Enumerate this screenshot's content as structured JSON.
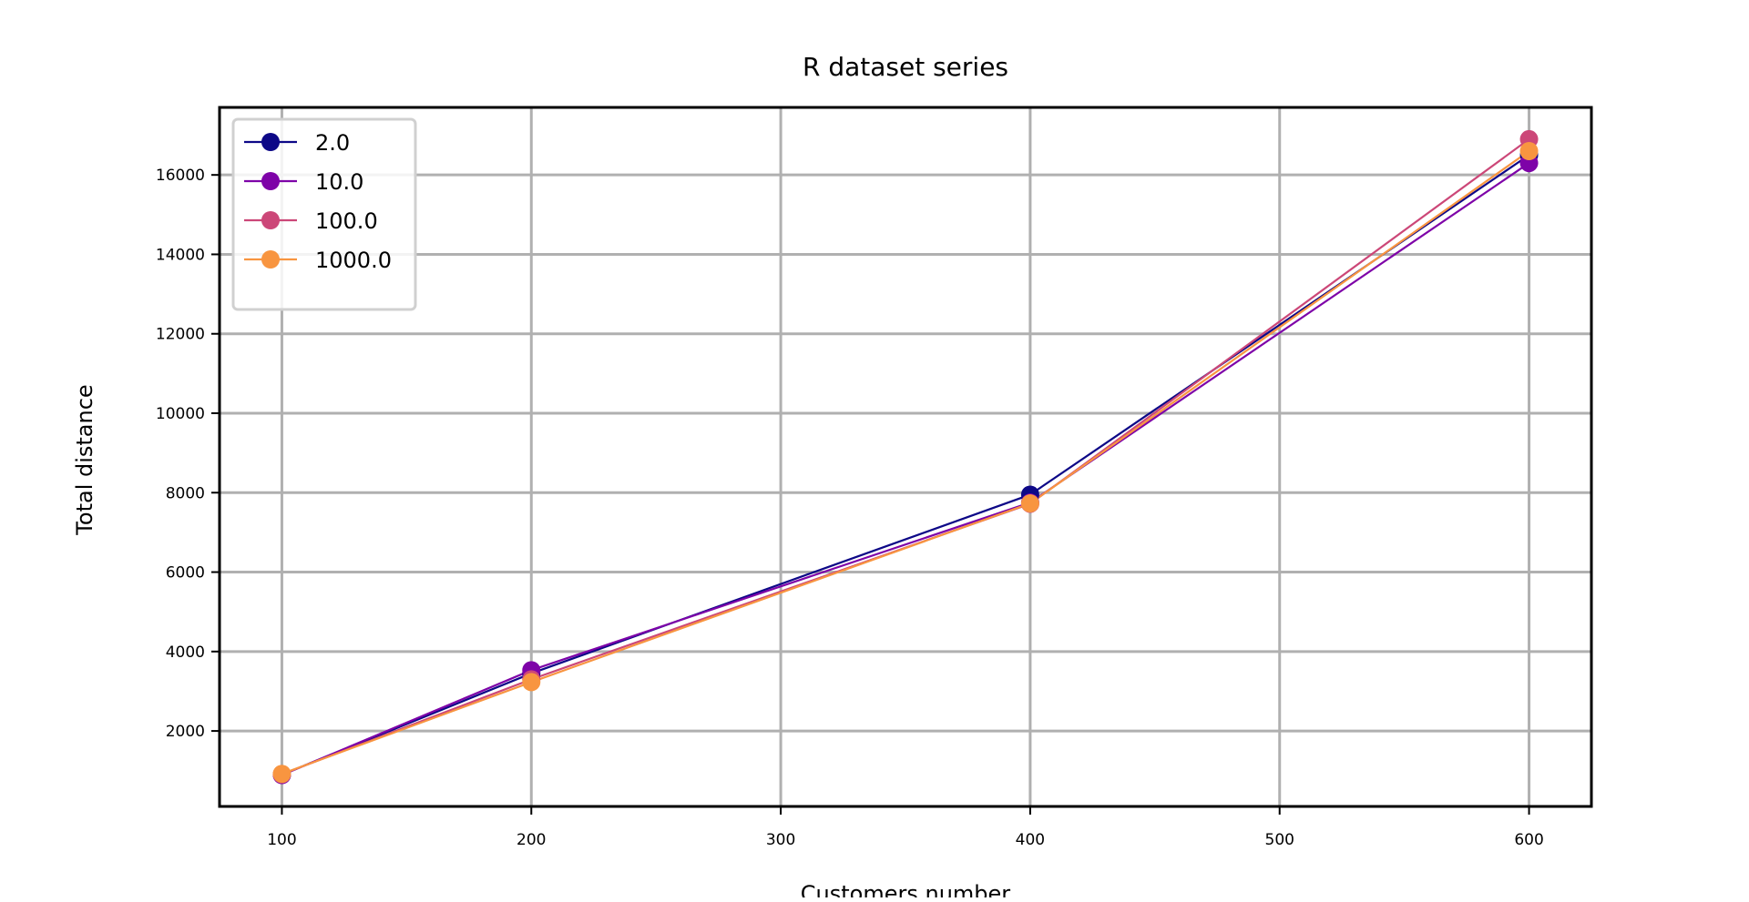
{
  "chart_data": {
    "type": "line",
    "title": "R dataset series",
    "xlabel": "Customers number",
    "ylabel": "Total distance",
    "x": [
      100,
      200,
      400,
      600
    ],
    "xlim": [
      75,
      625
    ],
    "ylim": [
      100,
      17700
    ],
    "xticks": [
      100,
      200,
      300,
      400,
      500,
      600
    ],
    "yticks": [
      2000,
      4000,
      6000,
      8000,
      10000,
      12000,
      14000,
      16000
    ],
    "grid": true,
    "legend_position": "top-left",
    "series": [
      {
        "name": "2.0",
        "color": "#0d0887",
        "values": [
          900,
          3450,
          7950,
          16500
        ]
      },
      {
        "name": "10.0",
        "color": "#7e03a8",
        "values": [
          890,
          3530,
          7750,
          16300
        ]
      },
      {
        "name": "100.0",
        "color": "#cc4778",
        "values": [
          910,
          3300,
          7720,
          16900
        ]
      },
      {
        "name": "1000.0",
        "color": "#f89540",
        "values": [
          920,
          3230,
          7730,
          16600
        ]
      }
    ]
  }
}
